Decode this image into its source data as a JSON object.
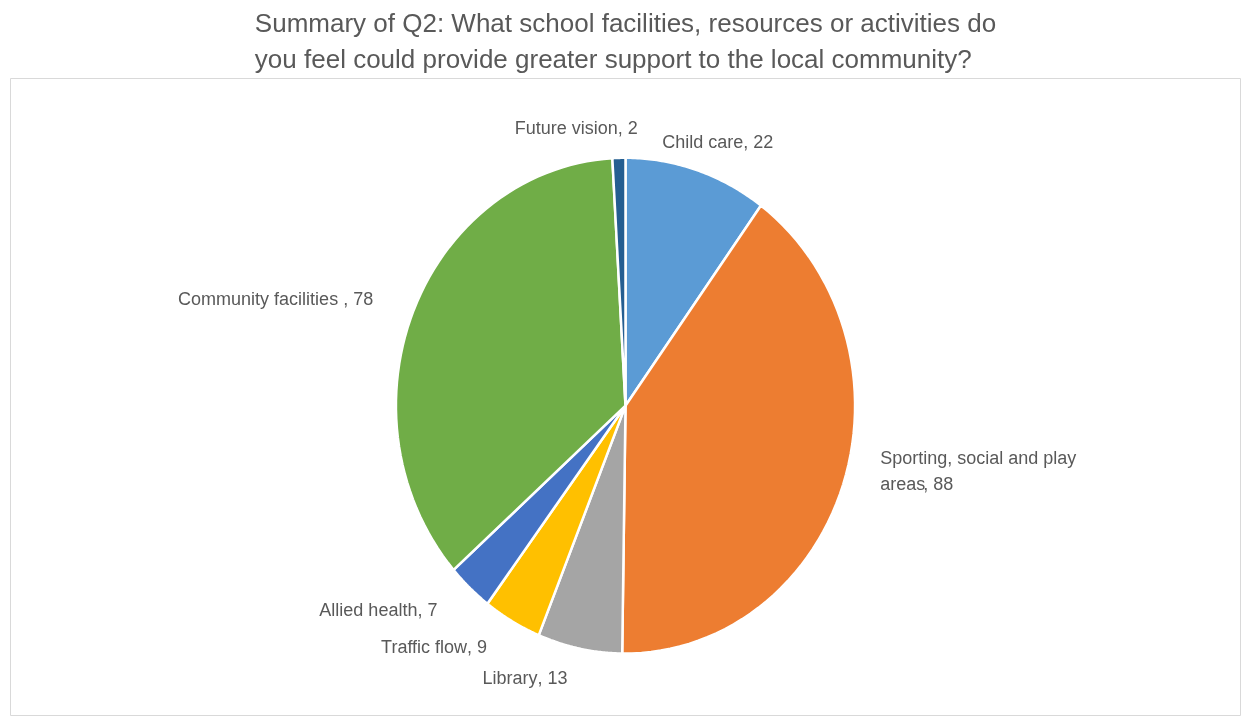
{
  "chart_data": {
    "type": "pie",
    "title": "Summary of Q2: What school facilities, resources or activities do you feel could provide greater support to the local community?",
    "categories": [
      "Child care",
      "Sporting, social and play areas",
      "Library",
      "Traffic flow",
      "Allied health",
      "Community facilities ",
      "Future vision"
    ],
    "values": [
      22,
      88,
      13,
      9,
      7,
      78,
      2
    ],
    "value_labels": [
      ", 22",
      ", 88",
      ", 13",
      ", 9",
      ", 7",
      ", 78",
      ", 2"
    ],
    "colors": [
      "#5b9bd5",
      "#ed7d31",
      "#a5a5a5",
      "#ffc000",
      "#4472c4",
      "#70ad47",
      "#255e91"
    ]
  }
}
